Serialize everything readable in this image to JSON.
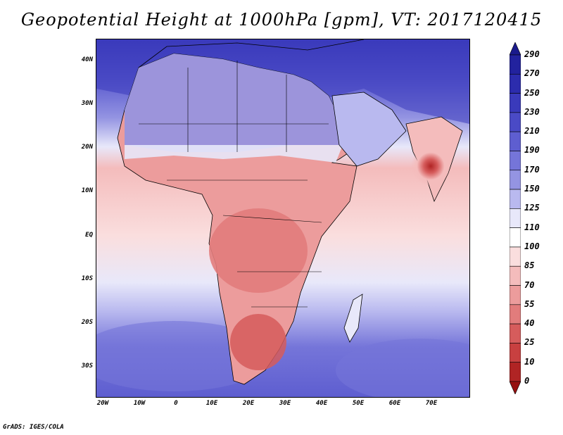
{
  "title": "Geopotential Height at 1000hPa [gpm], VT: 2017120415",
  "footer": "GrADS: IGES/COLA",
  "lat_labels": [
    "40N",
    "30N",
    "20N",
    "10N",
    "EQ",
    "10S",
    "20S",
    "30S"
  ],
  "lon_labels": [
    "20W",
    "10W",
    "0",
    "10E",
    "20E",
    "30E",
    "40E",
    "50E",
    "60E",
    "70E"
  ],
  "colorbar": {
    "levels": [
      "290",
      "270",
      "250",
      "230",
      "210",
      "190",
      "170",
      "150",
      "125",
      "110",
      "100",
      "85",
      "70",
      "55",
      "40",
      "25",
      "10",
      "0"
    ],
    "colors": [
      "#1a1a8c",
      "#22229e",
      "#2c2cad",
      "#3a3abb",
      "#4a4ac6",
      "#5e5ed0",
      "#7575d9",
      "#9494e2",
      "#b9b9ef",
      "#e8e8fa",
      "#ffffff",
      "#fadede",
      "#f4bcbc",
      "#ec9c9c",
      "#e27c7c",
      "#d65c5c",
      "#c84040",
      "#b02424",
      "#961010"
    ]
  },
  "map": {
    "extent": {
      "lon": [
        -22,
        80
      ],
      "lat": [
        -37,
        45
      ]
    },
    "ocean_color": "#f6c9c9",
    "land_color": "#ef9c9c"
  }
}
